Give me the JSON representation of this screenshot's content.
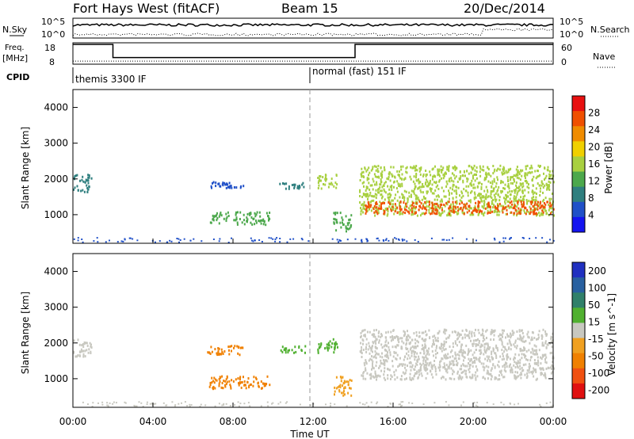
{
  "header": {
    "radar": "Fort Hays West (fitACF)",
    "beam": "Beam 15",
    "date": "20/Dec/2014"
  },
  "sky_panel": {
    "left_label": "N.Sky",
    "right_label": "N.Search",
    "left_ticks": [
      "10^5",
      "10^0"
    ],
    "right_ticks": [
      "10^5",
      "10^0"
    ]
  },
  "freq_panel": {
    "left_label_top": "Freq.",
    "left_label_unit": "[MHz]",
    "left_ticks": [
      "18",
      "8"
    ],
    "right_ticks": [
      "60",
      "0"
    ],
    "right_label": "Nave",
    "freq_steps": [
      {
        "from": 0.0,
        "to": 2.0,
        "value": 18
      },
      {
        "from": 2.0,
        "to": 14.1,
        "value": 10.8
      },
      {
        "from": 14.1,
        "to": 24.0,
        "value": 18
      }
    ],
    "nave_level": 5
  },
  "cpid": {
    "label": "CPID",
    "segments": [
      {
        "from": 0.0,
        "label": "themis 3300 IF"
      },
      {
        "from": 12.0,
        "label": "normal (fast) 151 IF"
      }
    ]
  },
  "colors": {
    "power_scale": [
      "#1414f0",
      "#2050c8",
      "#2f7f7f",
      "#4ca84c",
      "#a8d040",
      "#f0d000",
      "#f08c00",
      "#f05000",
      "#e81010"
    ],
    "velocity_scale": [
      "#2030c0",
      "#2860a0",
      "#30806a",
      "#50b030",
      "#c8c8c0",
      "#f0a020",
      "#f08000",
      "#f05010",
      "#e01010"
    ],
    "ground_scatter": "#c8c8c0"
  },
  "chart_data": [
    {
      "type": "heatmap",
      "name": "power",
      "xlabel": "",
      "ylabel": "Slant Range [km]",
      "xlim": [
        0,
        24
      ],
      "ylim": [
        200,
        4500
      ],
      "yticks": [
        "1000",
        "2000",
        "3000",
        "4000"
      ],
      "colorbar_label": "Power [dB]",
      "colorbar_ticks": [
        "4",
        "8",
        "12",
        "16",
        "20",
        "24",
        "28"
      ],
      "colorbar_range": [
        0,
        30
      ],
      "bands": [
        {
          "t0": 0.0,
          "t1": 0.9,
          "r0": 1650,
          "r1": 2150,
          "level": 9
        },
        {
          "t0": 6.7,
          "t1": 8.6,
          "r0": 1750,
          "r1": 1950,
          "level": 6
        },
        {
          "t0": 6.8,
          "t1": 9.8,
          "r0": 750,
          "r1": 1100,
          "level": 10
        },
        {
          "t0": 10.3,
          "t1": 11.6,
          "r0": 1750,
          "r1": 1950,
          "level": 8
        },
        {
          "t0": 12.2,
          "t1": 13.2,
          "r0": 1750,
          "r1": 2150,
          "level": 14
        },
        {
          "t0": 13.0,
          "t1": 13.9,
          "r0": 550,
          "r1": 1100,
          "level": 10
        },
        {
          "t0": 14.3,
          "t1": 24.0,
          "r0": 1000,
          "r1": 2400,
          "level": 16
        },
        {
          "t0": 14.5,
          "t1": 24.0,
          "r0": 1050,
          "r1": 1400,
          "level": 26
        }
      ]
    },
    {
      "type": "heatmap",
      "name": "velocity",
      "xlabel": "Time UT",
      "ylabel": "Slant Range [km]",
      "xlim": [
        0,
        24
      ],
      "ylim": [
        200,
        4500
      ],
      "xticks": [
        "00:00",
        "04:00",
        "08:00",
        "12:00",
        "16:00",
        "20:00",
        "00:00"
      ],
      "yticks": [
        "1000",
        "2000",
        "3000",
        "4000"
      ],
      "colorbar_label": "Velocity [m s^-1]",
      "colorbar_ticks": [
        "200",
        "100",
        "50",
        "15",
        "-15",
        "-50",
        "-100",
        "-200"
      ],
      "bands": [
        {
          "t0": 0.0,
          "t1": 0.9,
          "r0": 1650,
          "r1": 2150,
          "level": "ground"
        },
        {
          "t0": 6.7,
          "t1": 8.6,
          "r0": 1700,
          "r1": 1950,
          "level": -60
        },
        {
          "t0": 6.8,
          "t1": 9.8,
          "r0": 750,
          "r1": 1100,
          "level": -60
        },
        {
          "t0": 10.3,
          "t1": 11.6,
          "r0": 1750,
          "r1": 1950,
          "level": 40
        },
        {
          "t0": 12.2,
          "t1": 13.2,
          "r0": 1750,
          "r1": 2150,
          "level": 30
        },
        {
          "t0": 13.0,
          "t1": 13.9,
          "r0": 550,
          "r1": 1100,
          "level": -50
        },
        {
          "t0": 14.3,
          "t1": 24.0,
          "r0": 1000,
          "r1": 2400,
          "level": "ground"
        }
      ]
    }
  ]
}
